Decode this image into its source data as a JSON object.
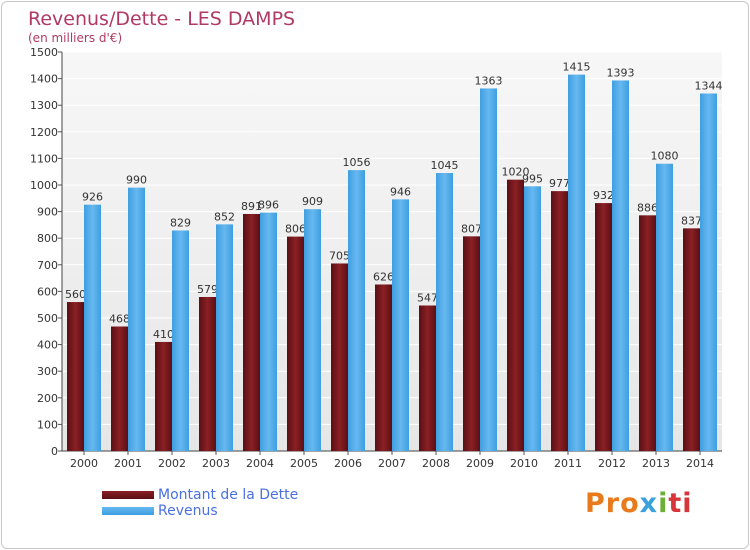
{
  "title": "Revenus/Dette - LES DAMPS",
  "subtitle": "(en milliers d'€)",
  "logo": {
    "part1": "Pro",
    "part2": "x",
    "part3": "i",
    "part4": "ti"
  },
  "chart_data": {
    "type": "bar",
    "categories": [
      "2000",
      "2001",
      "2002",
      "2003",
      "2004",
      "2005",
      "2006",
      "2007",
      "2008",
      "2009",
      "2010",
      "2011",
      "2012",
      "2013",
      "2014"
    ],
    "series": [
      {
        "name": "Montant de la Dette",
        "color": "#6b1318",
        "values": [
          560,
          468,
          410,
          579,
          891,
          806,
          705,
          626,
          547,
          807,
          1020,
          977,
          932,
          886,
          837
        ]
      },
      {
        "name": "Revenus",
        "color": "#4aa6e4",
        "values": [
          926,
          990,
          829,
          852,
          896,
          909,
          1056,
          946,
          1045,
          1363,
          995,
          1415,
          1393,
          1080,
          1344
        ]
      }
    ],
    "ylim": [
      0,
      1500
    ],
    "yticks": [
      0,
      100,
      200,
      300,
      400,
      500,
      600,
      700,
      800,
      900,
      1000,
      1100,
      1200,
      1300,
      1400,
      1500
    ],
    "grid": true,
    "legend_position": "bottom-left"
  }
}
